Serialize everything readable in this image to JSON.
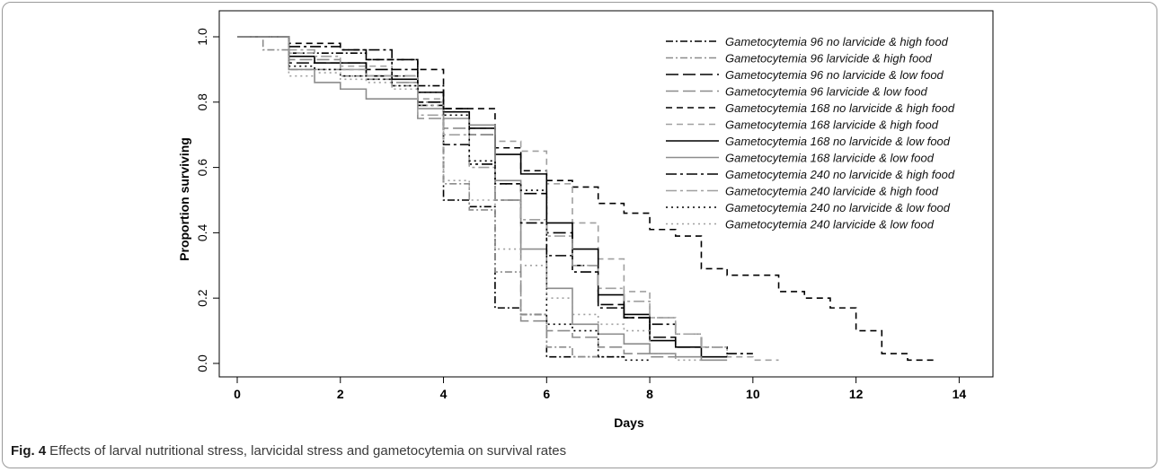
{
  "figure": {
    "label": "Fig. 4",
    "caption": "Effects of larval nutritional stress, larvicidal stress and gametocytemia on survival rates"
  },
  "chart_data": {
    "type": "line",
    "subtype": "step",
    "title": "",
    "xlabel": "Days",
    "ylabel": "Proportion surviving",
    "xlim": [
      0,
      15
    ],
    "ylim": [
      0,
      1
    ],
    "xticks": [
      "0",
      "2",
      "4",
      "6",
      "8",
      "10",
      "12",
      "14"
    ],
    "yticks": [
      "0.0",
      "0.2",
      "0.4",
      "0.6",
      "0.8",
      "1.0"
    ],
    "grid": false,
    "legend_position": "top-right",
    "series": [
      {
        "name": "Gametocytemia 96 no larvicide & high food",
        "color": "#000000",
        "dash": "dashdot",
        "x": [
          0,
          1,
          2.5,
          3.5,
          4,
          4.5,
          5,
          5.5,
          6,
          6.5,
          7
        ],
        "y": [
          1,
          0.95,
          0.93,
          0.85,
          0.5,
          0.48,
          0.17,
          0.15,
          0.02,
          0.02,
          0.02
        ]
      },
      {
        "name": "Gametocytemia 96 larvicide & high food",
        "color": "#8c8c8c",
        "dash": "dashdot",
        "x": [
          0,
          0.5,
          1,
          2,
          3,
          3.5,
          4,
          4.5,
          5,
          5.5,
          6,
          6.5
        ],
        "y": [
          1,
          0.96,
          0.9,
          0.88,
          0.85,
          0.8,
          0.55,
          0.47,
          0.28,
          0.15,
          0.05,
          0.02
        ]
      },
      {
        "name": "Gametocytemia 96 no larvicide & low food",
        "color": "#000000",
        "dash": "longdash",
        "x": [
          0,
          1,
          2,
          2.5,
          3,
          3.5,
          4,
          4.5,
          5,
          5.5,
          6,
          6.5,
          7,
          7.5,
          8,
          8.5
        ],
        "y": [
          1,
          0.92,
          0.92,
          0.9,
          0.88,
          0.8,
          0.78,
          0.7,
          0.55,
          0.52,
          0.4,
          0.3,
          0.18,
          0.14,
          0.08,
          0.05
        ]
      },
      {
        "name": "Gametocytemia 96 larvicide & low food",
        "color": "#8c8c8c",
        "dash": "longdash",
        "x": [
          0,
          1,
          2,
          2.5,
          3,
          3.5,
          4,
          4.5,
          5,
          5.5,
          6,
          6.5,
          7,
          7.5,
          8
        ],
        "y": [
          1,
          0.93,
          0.9,
          0.87,
          0.86,
          0.75,
          0.72,
          0.7,
          0.5,
          0.13,
          0.1,
          0.08,
          0.05,
          0.03,
          0.02
        ]
      },
      {
        "name": "Gametocytemia 168 no larvicide & high food",
        "color": "#000000",
        "dash": "dash",
        "x": [
          0,
          1,
          1.5,
          2,
          2.5,
          3,
          3.5,
          4,
          4.5,
          5,
          5.5,
          6,
          6.5,
          7,
          7.5,
          8,
          8.5,
          9,
          9.5,
          10,
          10.5,
          11,
          11.5,
          12,
          12.5,
          13
        ],
        "y": [
          1,
          0.98,
          0.98,
          0.96,
          0.93,
          0.93,
          0.9,
          0.78,
          0.78,
          0.66,
          0.59,
          0.56,
          0.54,
          0.49,
          0.46,
          0.41,
          0.39,
          0.29,
          0.27,
          0.27,
          0.22,
          0.2,
          0.17,
          0.1,
          0.03,
          0.01
        ]
      },
      {
        "name": "Gametocytemia 168 larvicide & high food",
        "color": "#a0a0a0",
        "dash": "dash",
        "x": [
          0,
          1,
          1.5,
          2,
          2.5,
          3,
          3.5,
          4,
          4.5,
          5,
          5.5,
          6,
          6.5,
          7,
          7.5,
          8,
          8.5,
          9,
          9.5,
          10
        ],
        "y": [
          1,
          0.95,
          0.92,
          0.91,
          0.91,
          0.86,
          0.81,
          0.77,
          0.72,
          0.68,
          0.65,
          0.55,
          0.43,
          0.32,
          0.22,
          0.14,
          0.09,
          0.05,
          0.02,
          0.01
        ]
      },
      {
        "name": "Gametocytemia 168 no larvicide & low food",
        "color": "#000000",
        "dash": "solid",
        "x": [
          0,
          1,
          1.5,
          2,
          2.5,
          3,
          3.5,
          4,
          4.5,
          5,
          5.5,
          6,
          6.5,
          7,
          7.5,
          8,
          8.5,
          9
        ],
        "y": [
          1,
          0.94,
          0.92,
          0.92,
          0.88,
          0.87,
          0.83,
          0.77,
          0.72,
          0.64,
          0.58,
          0.43,
          0.35,
          0.21,
          0.15,
          0.07,
          0.05,
          0.02
        ]
      },
      {
        "name": "Gametocytemia 168 larvicide & low food",
        "color": "#8c8c8c",
        "dash": "solid",
        "x": [
          0,
          1,
          1.5,
          2,
          2.5,
          3,
          3.5,
          4,
          4.5,
          5,
          5.5,
          6,
          6.5,
          7,
          7.5,
          8,
          8.5,
          9
        ],
        "y": [
          1,
          0.9,
          0.86,
          0.84,
          0.81,
          0.81,
          0.78,
          0.75,
          0.73,
          0.56,
          0.35,
          0.23,
          0.12,
          0.09,
          0.06,
          0.03,
          0.02,
          0.01
        ]
      },
      {
        "name": "Gametocytemia 240 no larvicide & high food",
        "color": "#000000",
        "dash": "dashdotlong",
        "x": [
          0,
          1,
          2,
          2.5,
          3,
          3.5,
          4,
          4.5,
          5,
          5.5,
          6,
          6.5,
          7,
          7.5,
          8,
          8.5,
          9,
          9.5
        ],
        "y": [
          1,
          0.97,
          0.96,
          0.96,
          0.9,
          0.79,
          0.67,
          0.61,
          0.5,
          0.43,
          0.33,
          0.28,
          0.17,
          0.14,
          0.12,
          0.09,
          0.05,
          0.03
        ]
      },
      {
        "name": "Gametocytemia 240 larvicide & high food",
        "color": "#a0a0a0",
        "dash": "dashdotlong",
        "x": [
          0,
          1,
          1.5,
          2,
          2.5,
          3,
          3.5,
          4,
          4.5,
          5,
          5.5,
          6,
          6.5,
          7,
          7.5,
          8,
          8.5,
          9
        ],
        "y": [
          1,
          0.96,
          0.94,
          0.9,
          0.88,
          0.88,
          0.76,
          0.7,
          0.6,
          0.5,
          0.44,
          0.39,
          0.3,
          0.23,
          0.19,
          0.14,
          0.09,
          0.05
        ]
      },
      {
        "name": "Gametocytemia 240 no larvicide & low food",
        "color": "#000000",
        "dash": "dot",
        "x": [
          0,
          1,
          1.5,
          2,
          2.5,
          3,
          3.5,
          4,
          4.5,
          5,
          5.5,
          6,
          6.5,
          7,
          7.5
        ],
        "y": [
          1,
          0.91,
          0.9,
          0.88,
          0.87,
          0.85,
          0.83,
          0.76,
          0.62,
          0.55,
          0.53,
          0.12,
          0.1,
          0.02,
          0.01
        ]
      },
      {
        "name": "Gametocytemia 240 larvicide & low food",
        "color": "#a0a0a0",
        "dash": "dot",
        "x": [
          0,
          1,
          1.5,
          2,
          2.5,
          3,
          3.5,
          4,
          4.5,
          5,
          5.5,
          6,
          6.5,
          7,
          7.5,
          8,
          8.5
        ],
        "y": [
          1,
          0.88,
          0.89,
          0.87,
          0.86,
          0.84,
          0.79,
          0.56,
          0.5,
          0.35,
          0.3,
          0.2,
          0.15,
          0.12,
          0.1,
          0.03,
          0.01
        ]
      }
    ]
  }
}
